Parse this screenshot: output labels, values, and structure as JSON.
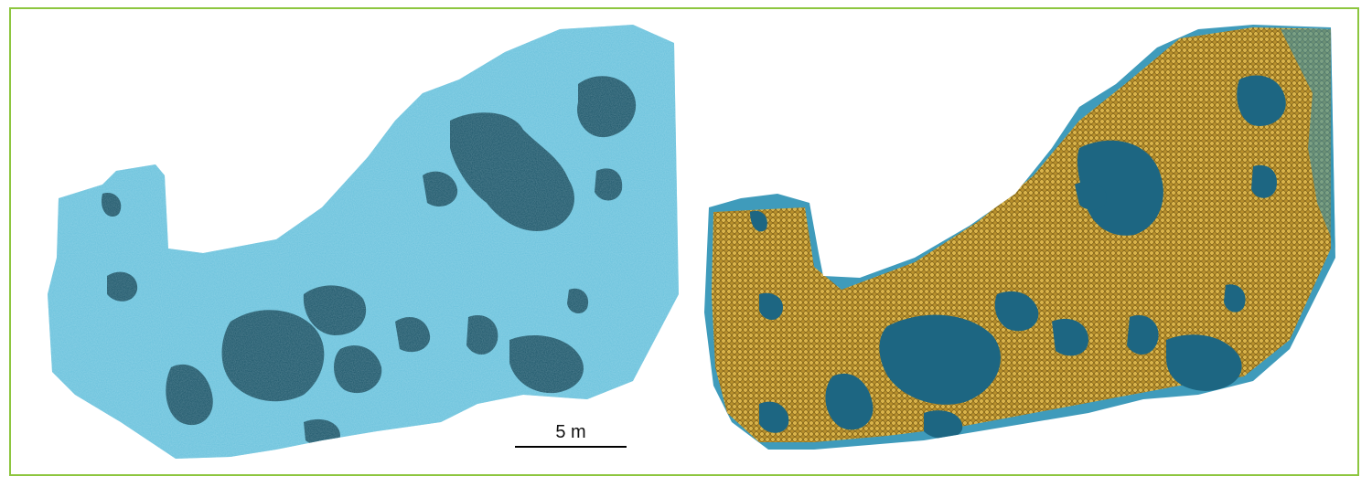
{
  "figure": {
    "frame_color": "#8dc63f",
    "left_panel": {
      "subject": "orthomosaic-seafloor",
      "water_color": "#5fbad8",
      "patch_color": "#1a5468"
    },
    "right_panel": {
      "subject": "detected-points-overlay",
      "water_color": "#3f9bbb",
      "patch_color": "#165064",
      "point_color": "#c9a23a"
    },
    "scale_bar": {
      "label": "5 m",
      "color": "#000000"
    }
  }
}
